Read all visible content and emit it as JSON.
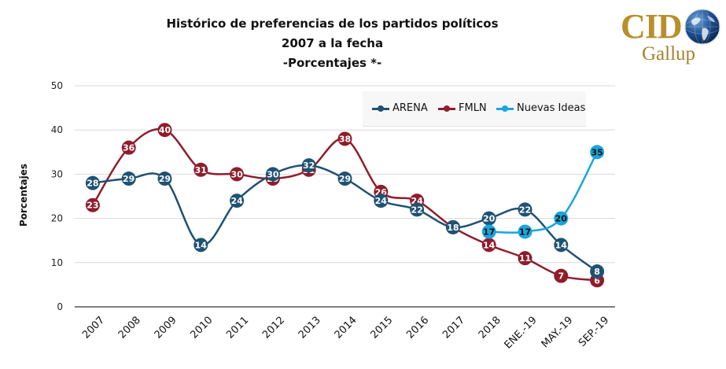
{
  "header": {
    "title_line1": "Histórico de preferencias de los partidos políticos",
    "title_line2": "2007 a la fecha",
    "title_line3": "-Porcentajes *-"
  },
  "logo": {
    "brand_top": "CID",
    "brand_bottom": "Gallup",
    "icon": "globe-icon"
  },
  "chart_data": {
    "type": "line",
    "title": "Histórico de preferencias de los partidos políticos 2007 a la fecha -Porcentajes *-",
    "xlabel": "",
    "ylabel": "Porcentajes",
    "ylim": [
      0,
      50
    ],
    "yticks": [
      0,
      10,
      20,
      30,
      40,
      50
    ],
    "grid": true,
    "legend_position": "top-right",
    "smooth": true,
    "categories": [
      "2007",
      "2008",
      "2009",
      "2010",
      "2011",
      "2012",
      "2013",
      "2014",
      "2015",
      "2016",
      "2017",
      "2018",
      "ENE.-19",
      "MAY.-19",
      "SEP.-19"
    ],
    "series": [
      {
        "name": "ARENA",
        "color": "#1f5273",
        "label_color": "#ffffff",
        "values": [
          28,
          29,
          29,
          14,
          24,
          30,
          32,
          29,
          24,
          22,
          18,
          20,
          22,
          14,
          8
        ]
      },
      {
        "name": "FMLN",
        "color": "#8f1d2c",
        "label_color": "#ffffff",
        "values": [
          23,
          36,
          40,
          31,
          30,
          29,
          31,
          38,
          26,
          24,
          18,
          14,
          11,
          7,
          6
        ]
      },
      {
        "name": "Nuevas Ideas",
        "color": "#1aa5de",
        "label_color": "#111111",
        "values": [
          null,
          null,
          null,
          null,
          null,
          null,
          null,
          null,
          null,
          null,
          null,
          17,
          17,
          20,
          35
        ]
      }
    ]
  }
}
